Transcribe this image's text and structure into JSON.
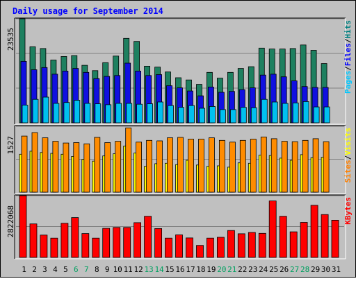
{
  "chart_data": {
    "type": "bar",
    "title": "Daily usage for September 2014",
    "categories": [
      "1",
      "2",
      "3",
      "4",
      "5",
      "6",
      "7",
      "8",
      "9",
      "10",
      "11",
      "12",
      "13",
      "14",
      "15",
      "16",
      "17",
      "18",
      "19",
      "20",
      "21",
      "22",
      "23",
      "24",
      "25",
      "26",
      "27",
      "28",
      "29",
      "30",
      "31"
    ],
    "weekend_days": [
      "6",
      "7",
      "13",
      "14",
      "20",
      "21",
      "27",
      "28"
    ],
    "panels": [
      {
        "id": "hits-files-pages",
        "max_label": "23535",
        "ylim": [
          0,
          23535
        ],
        "legend": [
          {
            "text": "Pages",
            "color": "#00c8ff"
          },
          {
            "text": "/",
            "color": "#000000"
          },
          {
            "text": "Files",
            "color": "#0000ff"
          },
          {
            "text": "/",
            "color": "#000000"
          },
          {
            "text": "Hits",
            "color": "#008080"
          }
        ],
        "series": [
          {
            "name": "Hits",
            "color": "#1e8060",
            "values": [
              23535,
              17200,
              16800,
              14200,
              15000,
              15200,
              13000,
              11800,
              13600,
              15100,
              19100,
              18400,
              12800,
              12600,
              11500,
              10200,
              9700,
              8700,
              11400,
              10100,
              11400,
              12300,
              12700,
              16900,
              16700,
              16700,
              16800,
              17600,
              16400,
              13400,
              0
            ]
          },
          {
            "name": "Files",
            "color": "#1010e0",
            "values": [
              13900,
              12000,
              12500,
              11000,
              11700,
              12300,
              11400,
              10000,
              10500,
              10700,
              13500,
              11700,
              10700,
              10900,
              8400,
              7900,
              7200,
              6100,
              8100,
              6900,
              7100,
              7500,
              7900,
              10800,
              11000,
              10400,
              9500,
              8200,
              8000,
              8000,
              0
            ]
          },
          {
            "name": "Pages",
            "color": "#00c0f0",
            "values": [
              4000,
              5300,
              5800,
              4400,
              4600,
              5100,
              4400,
              4300,
              4100,
              4400,
              4400,
              4200,
              4300,
              4700,
              3900,
              3500,
              3900,
              3300,
              3700,
              3000,
              3000,
              3500,
              3400,
              5300,
              4700,
              4400,
              4500,
              4800,
              3600,
              3600,
              0
            ]
          }
        ]
      },
      {
        "id": "visits-sites",
        "max_label": "1527",
        "ylim": [
          0,
          1527
        ],
        "legend": [
          {
            "text": "Sites",
            "color": "#ff8000"
          },
          {
            "text": "/",
            "color": "#000000"
          },
          {
            "text": "Visits",
            "color": "#ffff00"
          }
        ],
        "series": [
          {
            "name": "Visits",
            "color": "#ffff00",
            "values": [
              880,
              950,
              920,
              900,
              880,
              830,
              760,
              720,
              840,
              890,
              1070,
              910,
              600,
              660,
              670,
              640,
              740,
              630,
              600,
              610,
              580,
              680,
              670,
              860,
              850,
              790,
              740,
              870,
              800,
              810,
              0
            ]
          },
          {
            "name": "Sites",
            "color": "#ff8c00",
            "values": [
              1300,
              1380,
              1260,
              1180,
              1140,
              1150,
              1120,
              1270,
              1150,
              1180,
              1490,
              1160,
              1200,
              1190,
              1260,
              1270,
              1230,
              1230,
              1260,
              1200,
              1160,
              1200,
              1230,
              1280,
              1240,
              1180,
              1170,
              1200,
              1240,
              1170,
              0
            ]
          }
        ]
      },
      {
        "id": "kbytes",
        "max_label": "2822068",
        "ylim": [
          0,
          2822068
        ],
        "legend": [
          {
            "text": "KBytes",
            "color": "#ff0000"
          }
        ],
        "series": [
          {
            "name": "KBytes",
            "color": "#ff0000",
            "values": [
              2822068,
              1530000,
              1020000,
              880000,
              1560000,
              1820000,
              1090000,
              880000,
              1330000,
              1370000,
              1370000,
              1590000,
              1880000,
              1320000,
              880000,
              1030000,
              890000,
              550000,
              880000,
              920000,
              1230000,
              1080000,
              1140000,
              1100000,
              2580000,
              1880000,
              1170000,
              1600000,
              2380000,
              1960000,
              1700000
            ]
          }
        ]
      }
    ],
    "colors": {
      "background": "#c0c0c0",
      "page": "#ffffff",
      "title": "#0000ff",
      "axis_labels_weekday": "#000000",
      "axis_labels_weekend": "#00a060",
      "gridline": "#808080"
    }
  }
}
